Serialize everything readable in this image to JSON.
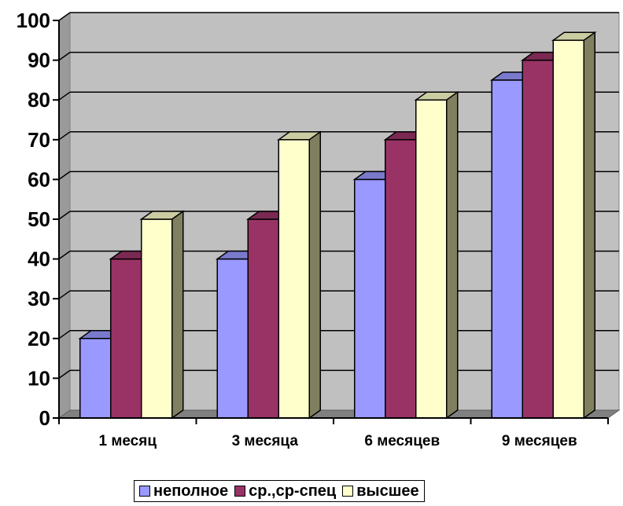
{
  "chart_data": {
    "type": "bar",
    "style": "3d-clustered-column",
    "categories": [
      "1 месяц",
      "3 месяца",
      "6 месяцев",
      "9 месяцев"
    ],
    "series": [
      {
        "name": "неполное",
        "values": [
          20,
          40,
          60,
          85
        ],
        "color": "#9999FF"
      },
      {
        "name": "ср.,ср-спец",
        "values": [
          40,
          50,
          70,
          90
        ],
        "color": "#993366"
      },
      {
        "name": "высшее",
        "values": [
          50,
          70,
          80,
          95
        ],
        "color": "#FFFFCC"
      }
    ],
    "ylim": [
      0,
      100
    ],
    "yticks": [
      "0",
      "10",
      "20",
      "30",
      "40",
      "50",
      "60",
      "70",
      "80",
      "90",
      "100"
    ],
    "grid": true,
    "legend": "bottom",
    "colors": {
      "wall": "#C0C0C0",
      "floor": "#808080",
      "bar_side": "#808060"
    }
  }
}
